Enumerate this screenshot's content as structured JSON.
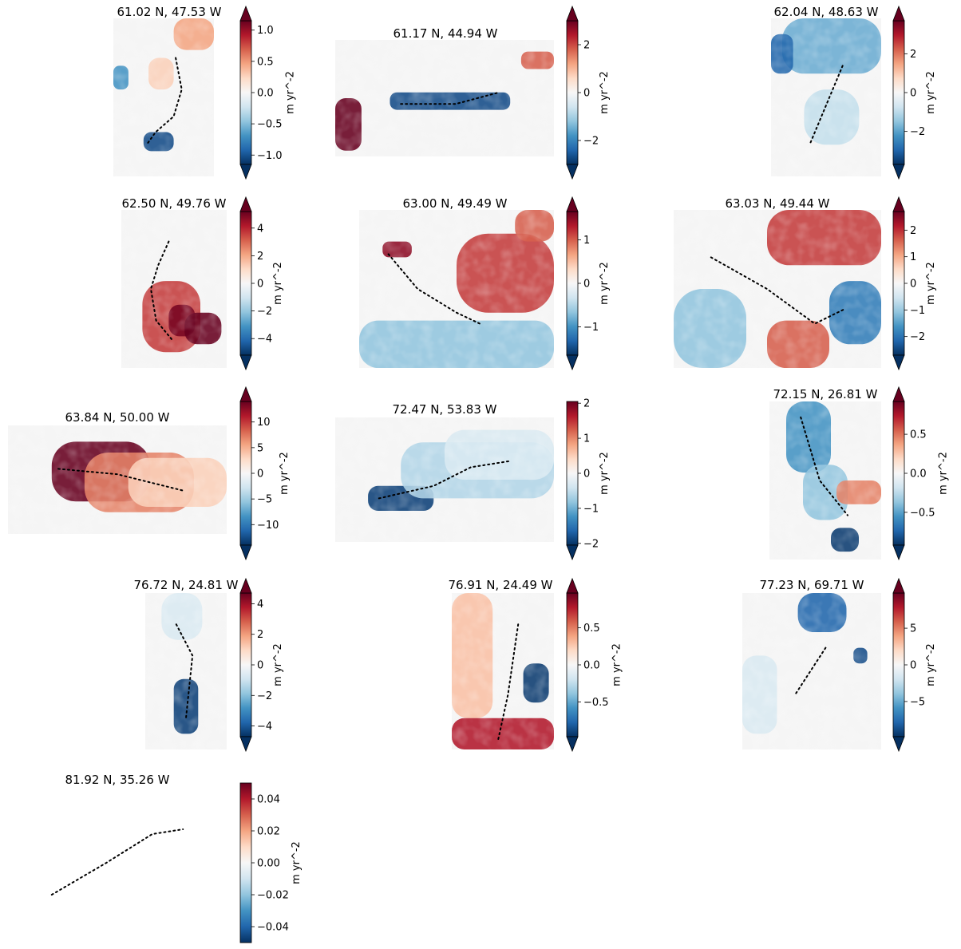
{
  "chart_data": {
    "type": "heatmap",
    "colormap": "RdBu_r",
    "panels": [
      {
        "title": "61.02 N, 47.53 W",
        "cbar_label": "m yr^-2",
        "vlim": [
          -1.15,
          1.15
        ],
        "ticks": [
          -1.0,
          -0.5,
          0.0,
          0.5,
          1.0
        ],
        "tick_labels": [
          "−1.0",
          "−0.5",
          "0.0",
          "0.5",
          "1.0"
        ],
        "extend": "both"
      },
      {
        "title": "61.17 N, 44.94 W",
        "cbar_label": "m yr^-2",
        "vlim": [
          -3.0,
          3.0
        ],
        "ticks": [
          -2,
          0,
          2
        ],
        "tick_labels": [
          "−2",
          "0",
          "2"
        ],
        "extend": "both"
      },
      {
        "title": "62.04 N, 48.63 W",
        "cbar_label": "m yr^-2",
        "vlim": [
          -3.7,
          3.7
        ],
        "ticks": [
          -2,
          0,
          2
        ],
        "tick_labels": [
          "−2",
          "0",
          "2"
        ],
        "extend": "both"
      },
      {
        "title": "62.50 N, 49.76 W",
        "cbar_label": "m yr^-2",
        "vlim": [
          -5.2,
          5.2
        ],
        "ticks": [
          -4,
          -2,
          0,
          2,
          4
        ],
        "tick_labels": [
          "−4",
          "−2",
          "0",
          "2",
          "4"
        ],
        "extend": "both"
      },
      {
        "title": "63.00 N, 49.49 W",
        "cbar_label": "m yr^-2",
        "vlim": [
          -1.65,
          1.65
        ],
        "ticks": [
          -1,
          0,
          1
        ],
        "tick_labels": [
          "−1",
          "0",
          "1"
        ],
        "extend": "both"
      },
      {
        "title": "63.03 N, 49.44 W",
        "cbar_label": "m yr^-2",
        "vlim": [
          -2.7,
          2.7
        ],
        "ticks": [
          -2,
          -1,
          0,
          1,
          2
        ],
        "tick_labels": [
          "−2",
          "−1",
          "0",
          "1",
          "2"
        ],
        "extend": "both"
      },
      {
        "title": "63.84 N, 50.00 W",
        "cbar_label": "m yr^-2",
        "vlim": [
          -14,
          14
        ],
        "ticks": [
          -10,
          -5,
          0,
          5,
          10
        ],
        "tick_labels": [
          "−10",
          "−5",
          "0",
          "5",
          "10"
        ],
        "extend": "both"
      },
      {
        "title": "72.47 N, 53.83 W",
        "cbar_label": "m yr^-2",
        "vlim": [
          -2.05,
          2.05
        ],
        "ticks": [
          -2,
          -1,
          0,
          1,
          2
        ],
        "tick_labels": [
          "−2",
          "−1",
          "0",
          "1",
          "2"
        ],
        "extend": "min"
      },
      {
        "title": "72.15 N, 26.81 W",
        "cbar_label": "m yr^-2",
        "vlim": [
          -0.92,
          0.92
        ],
        "ticks": [
          -0.5,
          0.0,
          0.5
        ],
        "tick_labels": [
          "−0.5",
          "0.0",
          "0.5"
        ],
        "extend": "both"
      },
      {
        "title": "76.72 N, 24.81 W",
        "cbar_label": "m yr^-2",
        "vlim": [
          -4.7,
          4.7
        ],
        "ticks": [
          -4,
          -2,
          0,
          2,
          4
        ],
        "tick_labels": [
          "−4",
          "−2",
          "0",
          "2",
          "4"
        ],
        "extend": "both"
      },
      {
        "title": "76.91 N, 24.49 W",
        "cbar_label": "m yr^-2",
        "vlim": [
          -0.97,
          0.97
        ],
        "ticks": [
          -0.5,
          0.0,
          0.5
        ],
        "tick_labels": [
          "−0.5",
          "0.0",
          "0.5"
        ],
        "extend": "both"
      },
      {
        "title": "77.23 N, 69.71 W",
        "cbar_label": "m yr^-2",
        "vlim": [
          -9.8,
          9.8
        ],
        "ticks": [
          -5,
          0,
          5
        ],
        "tick_labels": [
          "−5",
          "0",
          "5"
        ],
        "extend": "both"
      },
      {
        "title": "81.92 N, 35.26 W",
        "cbar_label": "m yr^-2",
        "vlim": [
          -0.05,
          0.05
        ],
        "ticks": [
          -0.04,
          -0.02,
          0.0,
          0.02,
          0.04
        ],
        "tick_labels": [
          "−0.04",
          "−0.02",
          "0.00",
          "0.02",
          "0.04"
        ],
        "extend": "neither"
      }
    ]
  }
}
